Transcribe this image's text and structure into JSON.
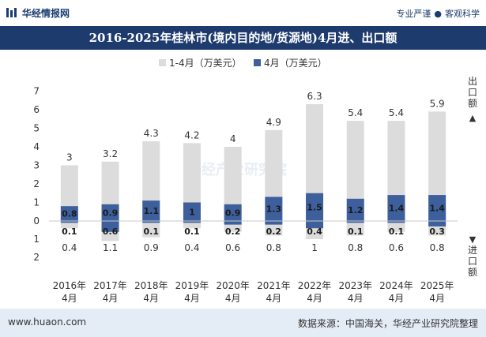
{
  "header": {
    "brand": "华经情报网",
    "tagline_left": "专业严谨",
    "tagline_right": "客观科学"
  },
  "title": "2016-2025年桂林市(境内目的地/货源地)4月进、出口额",
  "footer": {
    "url": "www.huaon.com",
    "source": "数据来源：中国海关，华经产业研究院整理"
  },
  "watermark": "华经产业研究院",
  "side_labels": {
    "top": "出口额",
    "bottom": "进口额"
  },
  "colors": {
    "header_bg": "#1e3b6e",
    "cum_bar": "#dcdcdc",
    "month_bar": "#3d5f9c",
    "footer_bg": "#e4ecf5"
  },
  "chart_data": {
    "type": "bar",
    "categories": [
      "2016年4月",
      "2017年4月",
      "2018年4月",
      "2019年4月",
      "2020年4月",
      "2021年4月",
      "2022年4月",
      "2023年4月",
      "2024年4月",
      "2025年4月"
    ],
    "legend": [
      "1-4月（万美元）",
      "4月（万美元）"
    ],
    "export": {
      "cumulative": [
        3,
        3.2,
        4.3,
        4.2,
        4,
        4.9,
        6.3,
        5.4,
        5.4,
        5.9
      ],
      "month": [
        0.8,
        0.9,
        1.1,
        1,
        0.9,
        1.3,
        1.5,
        1.2,
        1.4,
        1.4
      ]
    },
    "import": {
      "cumulative": [
        0.4,
        1.1,
        0.9,
        0.4,
        0.6,
        0.8,
        1,
        0.8,
        0.6,
        0.8
      ],
      "month": [
        0.1,
        0.6,
        0.1,
        0.1,
        0.2,
        0.2,
        0.4,
        0.1,
        0.1,
        0.3
      ]
    },
    "y_ticks_up": [
      0,
      1,
      2,
      3,
      4,
      5,
      6,
      7
    ],
    "y_ticks_down": [
      1,
      2
    ],
    "ylim": [
      -2,
      7
    ],
    "legend_position": "top-center"
  }
}
